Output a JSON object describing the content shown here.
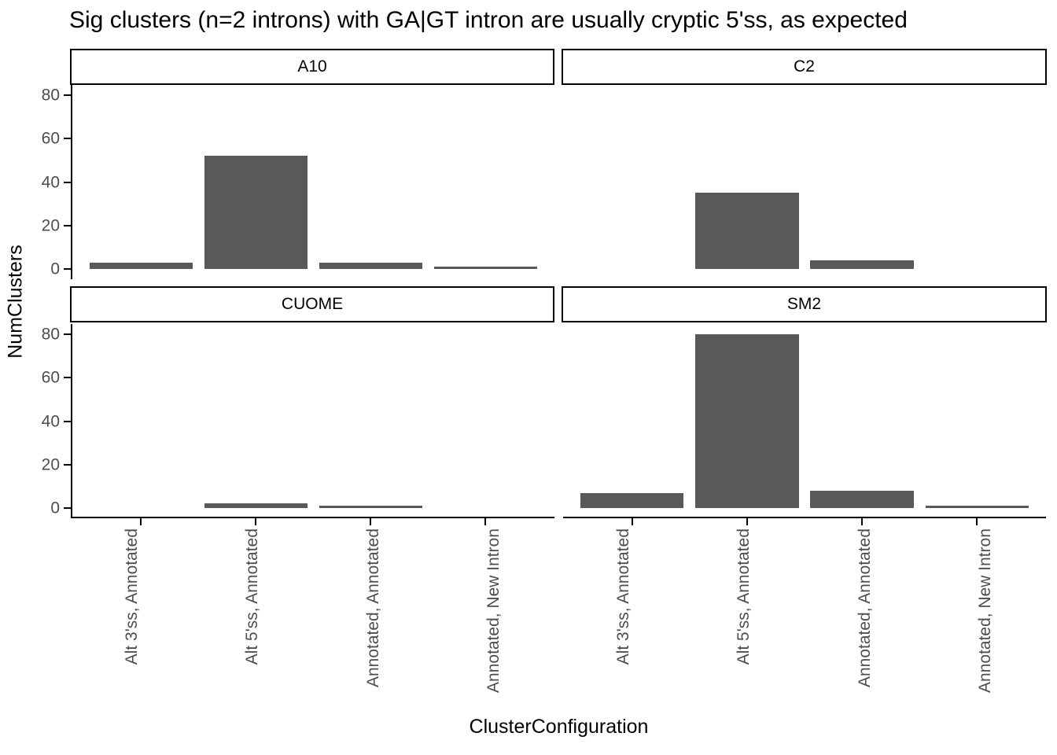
{
  "title": "Sig clusters (n=2 introns) with GA|GT intron are usually cryptic 5'ss, as expected",
  "chart_data": {
    "type": "bar",
    "title": "Sig clusters (n=2 introns) with GA|GT intron are usually cryptic 5'ss, as expected",
    "xlabel": "ClusterConfiguration",
    "ylabel": "NumClusters",
    "categories": [
      "Alt 3'ss, Annotated",
      "Alt 5'ss, Annotated",
      "Annotated, Annotated",
      "Annotated, New Intron"
    ],
    "facets": [
      {
        "name": "A10",
        "values": [
          3,
          52,
          3,
          1
        ]
      },
      {
        "name": "C2",
        "values": [
          0,
          35,
          4,
          0
        ]
      },
      {
        "name": "CUOME",
        "values": [
          0,
          2,
          1,
          0
        ]
      },
      {
        "name": "SM2",
        "values": [
          7,
          80,
          8,
          1
        ]
      }
    ],
    "y_ticks": [
      0,
      20,
      40,
      60,
      80
    ],
    "ylim": [
      0,
      80
    ],
    "facet_layout": [
      "A10",
      "C2",
      "CUOME",
      "SM2"
    ],
    "bar_color": "#595959",
    "axis_text_color": "#4D4D4D",
    "axis_line_color": "#000000",
    "grid": false,
    "legend": false
  }
}
